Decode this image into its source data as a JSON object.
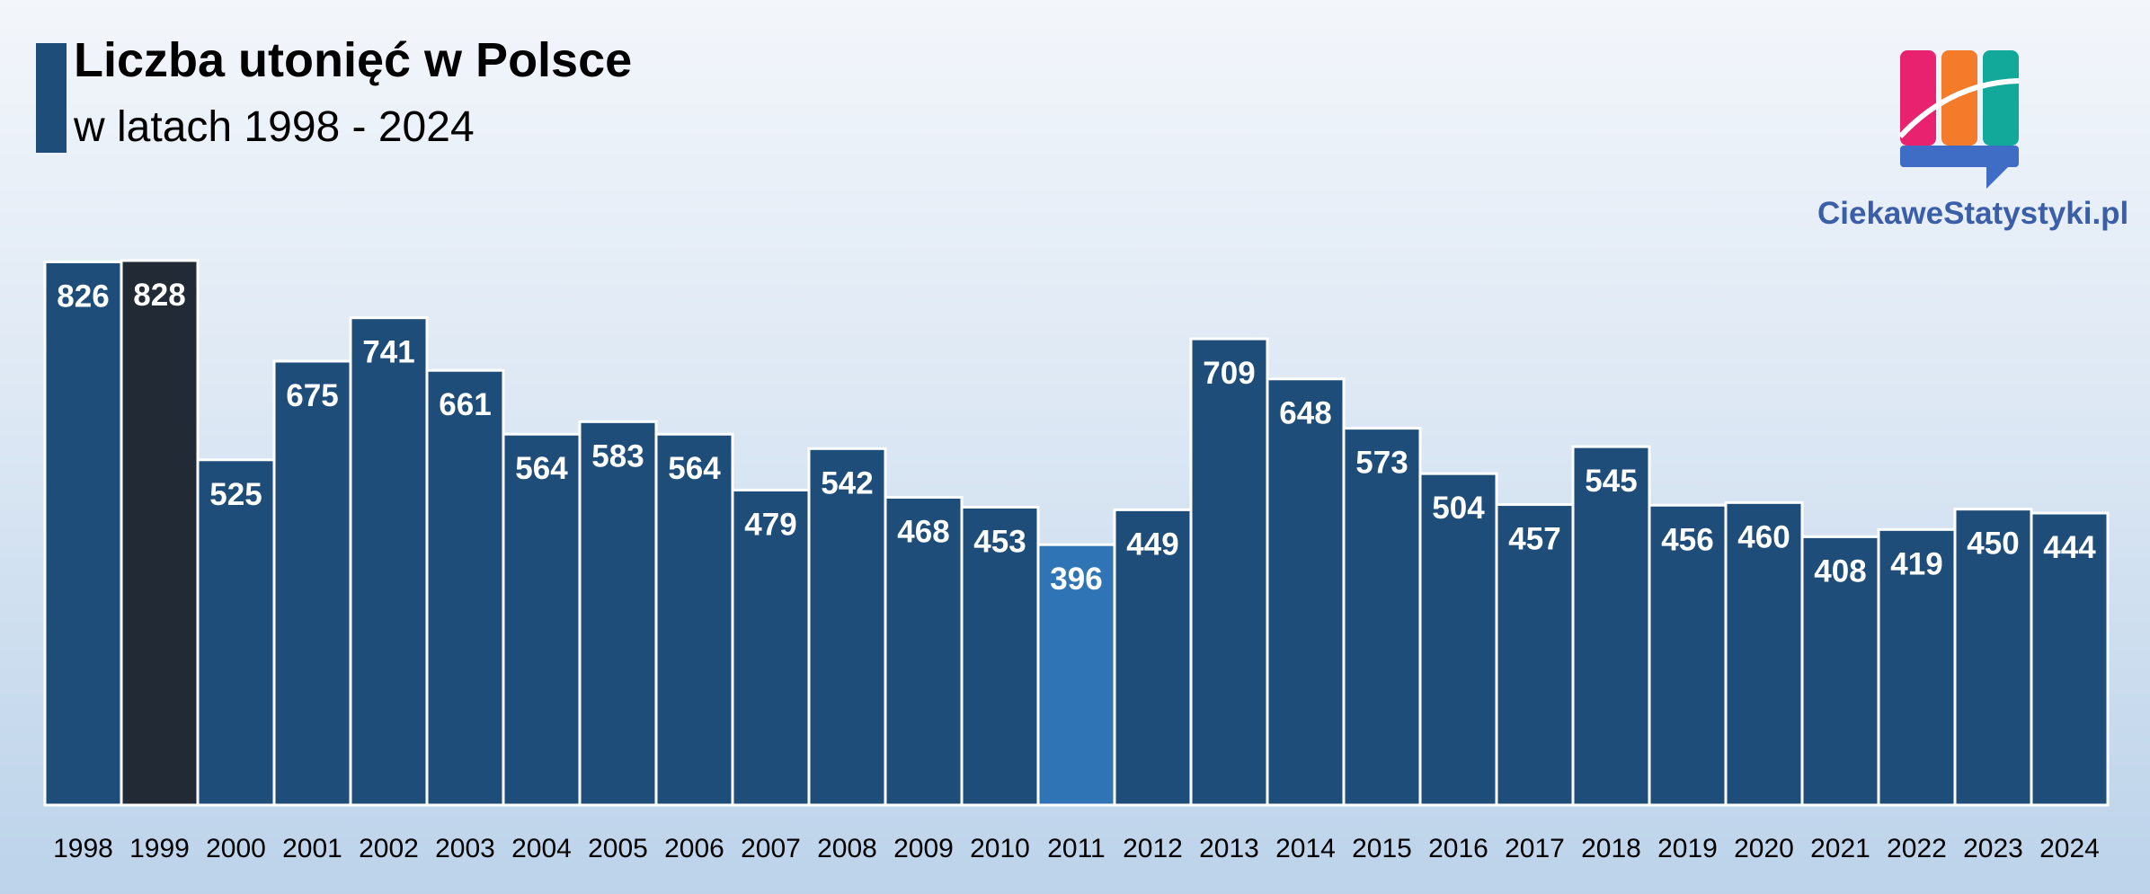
{
  "header": {
    "title": "Liczba utonięć w Polsce",
    "subtitle": "w latach 1998 - 2024"
  },
  "brand": {
    "name": "CiekaweStatystyki.pl",
    "logo_colors": [
      "#e8226e",
      "#f47b2a",
      "#12a89a",
      "#3f6cc4"
    ]
  },
  "colors": {
    "bar": "#1f4d7a",
    "highlight_max": "#222a35",
    "highlight_min": "#2f74b5",
    "bar_border": "#ffffff",
    "label": "#ffffff"
  },
  "chart_data": {
    "type": "bar",
    "title": "Liczba utonięć w Polsce",
    "subtitle": "w latach 1998 - 2024",
    "xlabel": "",
    "ylabel": "",
    "categories": [
      "1998",
      "1999",
      "2000",
      "2001",
      "2002",
      "2003",
      "2004",
      "2005",
      "2006",
      "2007",
      "2008",
      "2009",
      "2010",
      "2011",
      "2012",
      "2013",
      "2014",
      "2015",
      "2016",
      "2017",
      "2018",
      "2019",
      "2020",
      "2021",
      "2022",
      "2023",
      "2024"
    ],
    "values": [
      826,
      828,
      525,
      675,
      741,
      661,
      564,
      583,
      564,
      479,
      542,
      468,
      453,
      396,
      449,
      709,
      648,
      573,
      504,
      457,
      545,
      456,
      460,
      408,
      419,
      450,
      444
    ],
    "highlight": {
      "max_index": 1,
      "min_index": 13
    },
    "grid": false,
    "legend": "none",
    "data_labels": true
  }
}
